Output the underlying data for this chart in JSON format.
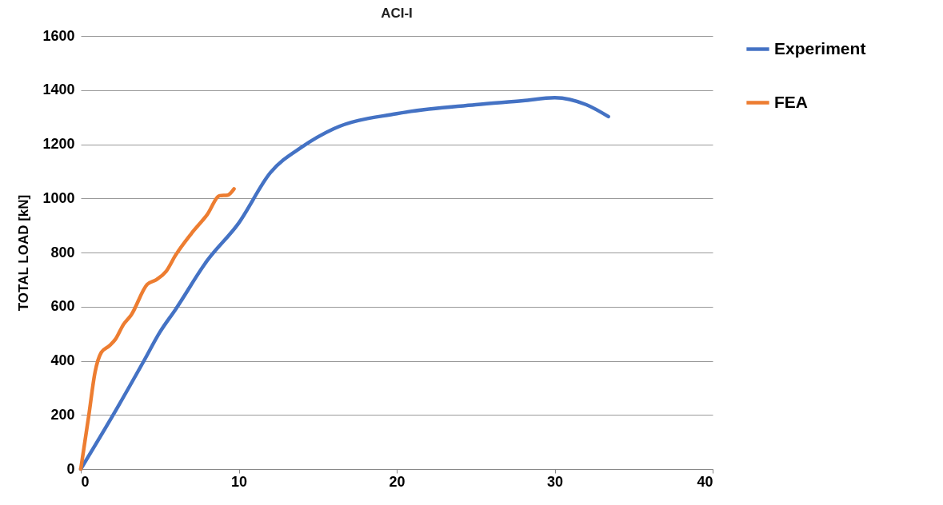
{
  "chart_data": {
    "type": "line",
    "title": "ACI-I",
    "ylabel": "TOTAL LOAD [kN]",
    "xlim": [
      0,
      40
    ],
    "xticks": [
      0,
      10,
      20,
      30,
      40
    ],
    "ylim": [
      0,
      1600
    ],
    "yticks": [
      0,
      200,
      400,
      600,
      800,
      1000,
      1200,
      1400,
      1600
    ],
    "grid": "y",
    "legend": "right",
    "line_style": "solid",
    "marker": "none",
    "series": [
      {
        "name": "Experiment",
        "color": "#4472c4",
        "x": [
          0,
          2,
          4,
          5,
          6,
          8,
          10,
          12,
          14,
          16,
          20,
          25,
          28,
          30,
          32,
          33.4
        ],
        "values": [
          0,
          195,
          400,
          505,
          590,
          770,
          909,
          1095,
          1190,
          1257,
          1313,
          1346,
          1361,
          1372,
          1346,
          1302
        ]
      },
      {
        "name": "FEA",
        "color": "#ed7d31",
        "x": [
          0,
          0.5,
          0.9,
          1.3,
          1.8,
          2.2,
          2.7,
          3.2,
          4.2,
          4.8,
          5.4,
          6,
          7,
          8,
          8.8,
          9.3,
          9.7
        ],
        "values": [
          0,
          195,
          357,
          431,
          455,
          480,
          534,
          570,
          682,
          700,
          730,
          790,
          870,
          940,
          1010,
          1012,
          1035
        ]
      }
    ]
  }
}
